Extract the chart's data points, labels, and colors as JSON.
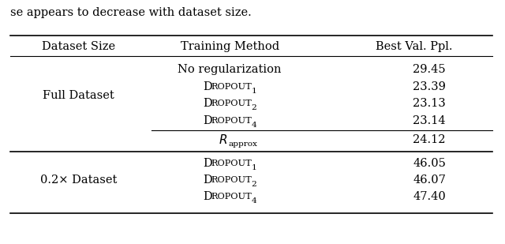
{
  "title_text": "se appears to decrease with dataset size.",
  "col_headers": [
    "Dataset Size",
    "Training Method",
    "Best Val. Ppl."
  ],
  "rows": [
    {
      "method": "No regularization",
      "ppl": "29.45",
      "special": false,
      "subscript": null
    },
    {
      "method": "DROPOUT",
      "ppl": "23.39",
      "special": false,
      "subscript": "1"
    },
    {
      "method": "DROPOUT",
      "ppl": "23.13",
      "special": false,
      "subscript": "2"
    },
    {
      "method": "DROPOUT",
      "ppl": "23.14",
      "special": false,
      "subscript": "4"
    },
    {
      "method": "R_approx",
      "ppl": "24.12",
      "special": true,
      "subscript": null
    },
    {
      "method": "DROPOUT",
      "ppl": "46.05",
      "special": false,
      "subscript": "1"
    },
    {
      "method": "DROPOUT",
      "ppl": "46.07",
      "special": false,
      "subscript": "2"
    },
    {
      "method": "DROPOUT",
      "ppl": "47.40",
      "special": false,
      "subscript": "4"
    }
  ],
  "full_dataset_rows": [
    0,
    1,
    2,
    3
  ],
  "dataset_02_rows": [
    5,
    6,
    7
  ],
  "bg_color": "white",
  "font_size": 10.5
}
